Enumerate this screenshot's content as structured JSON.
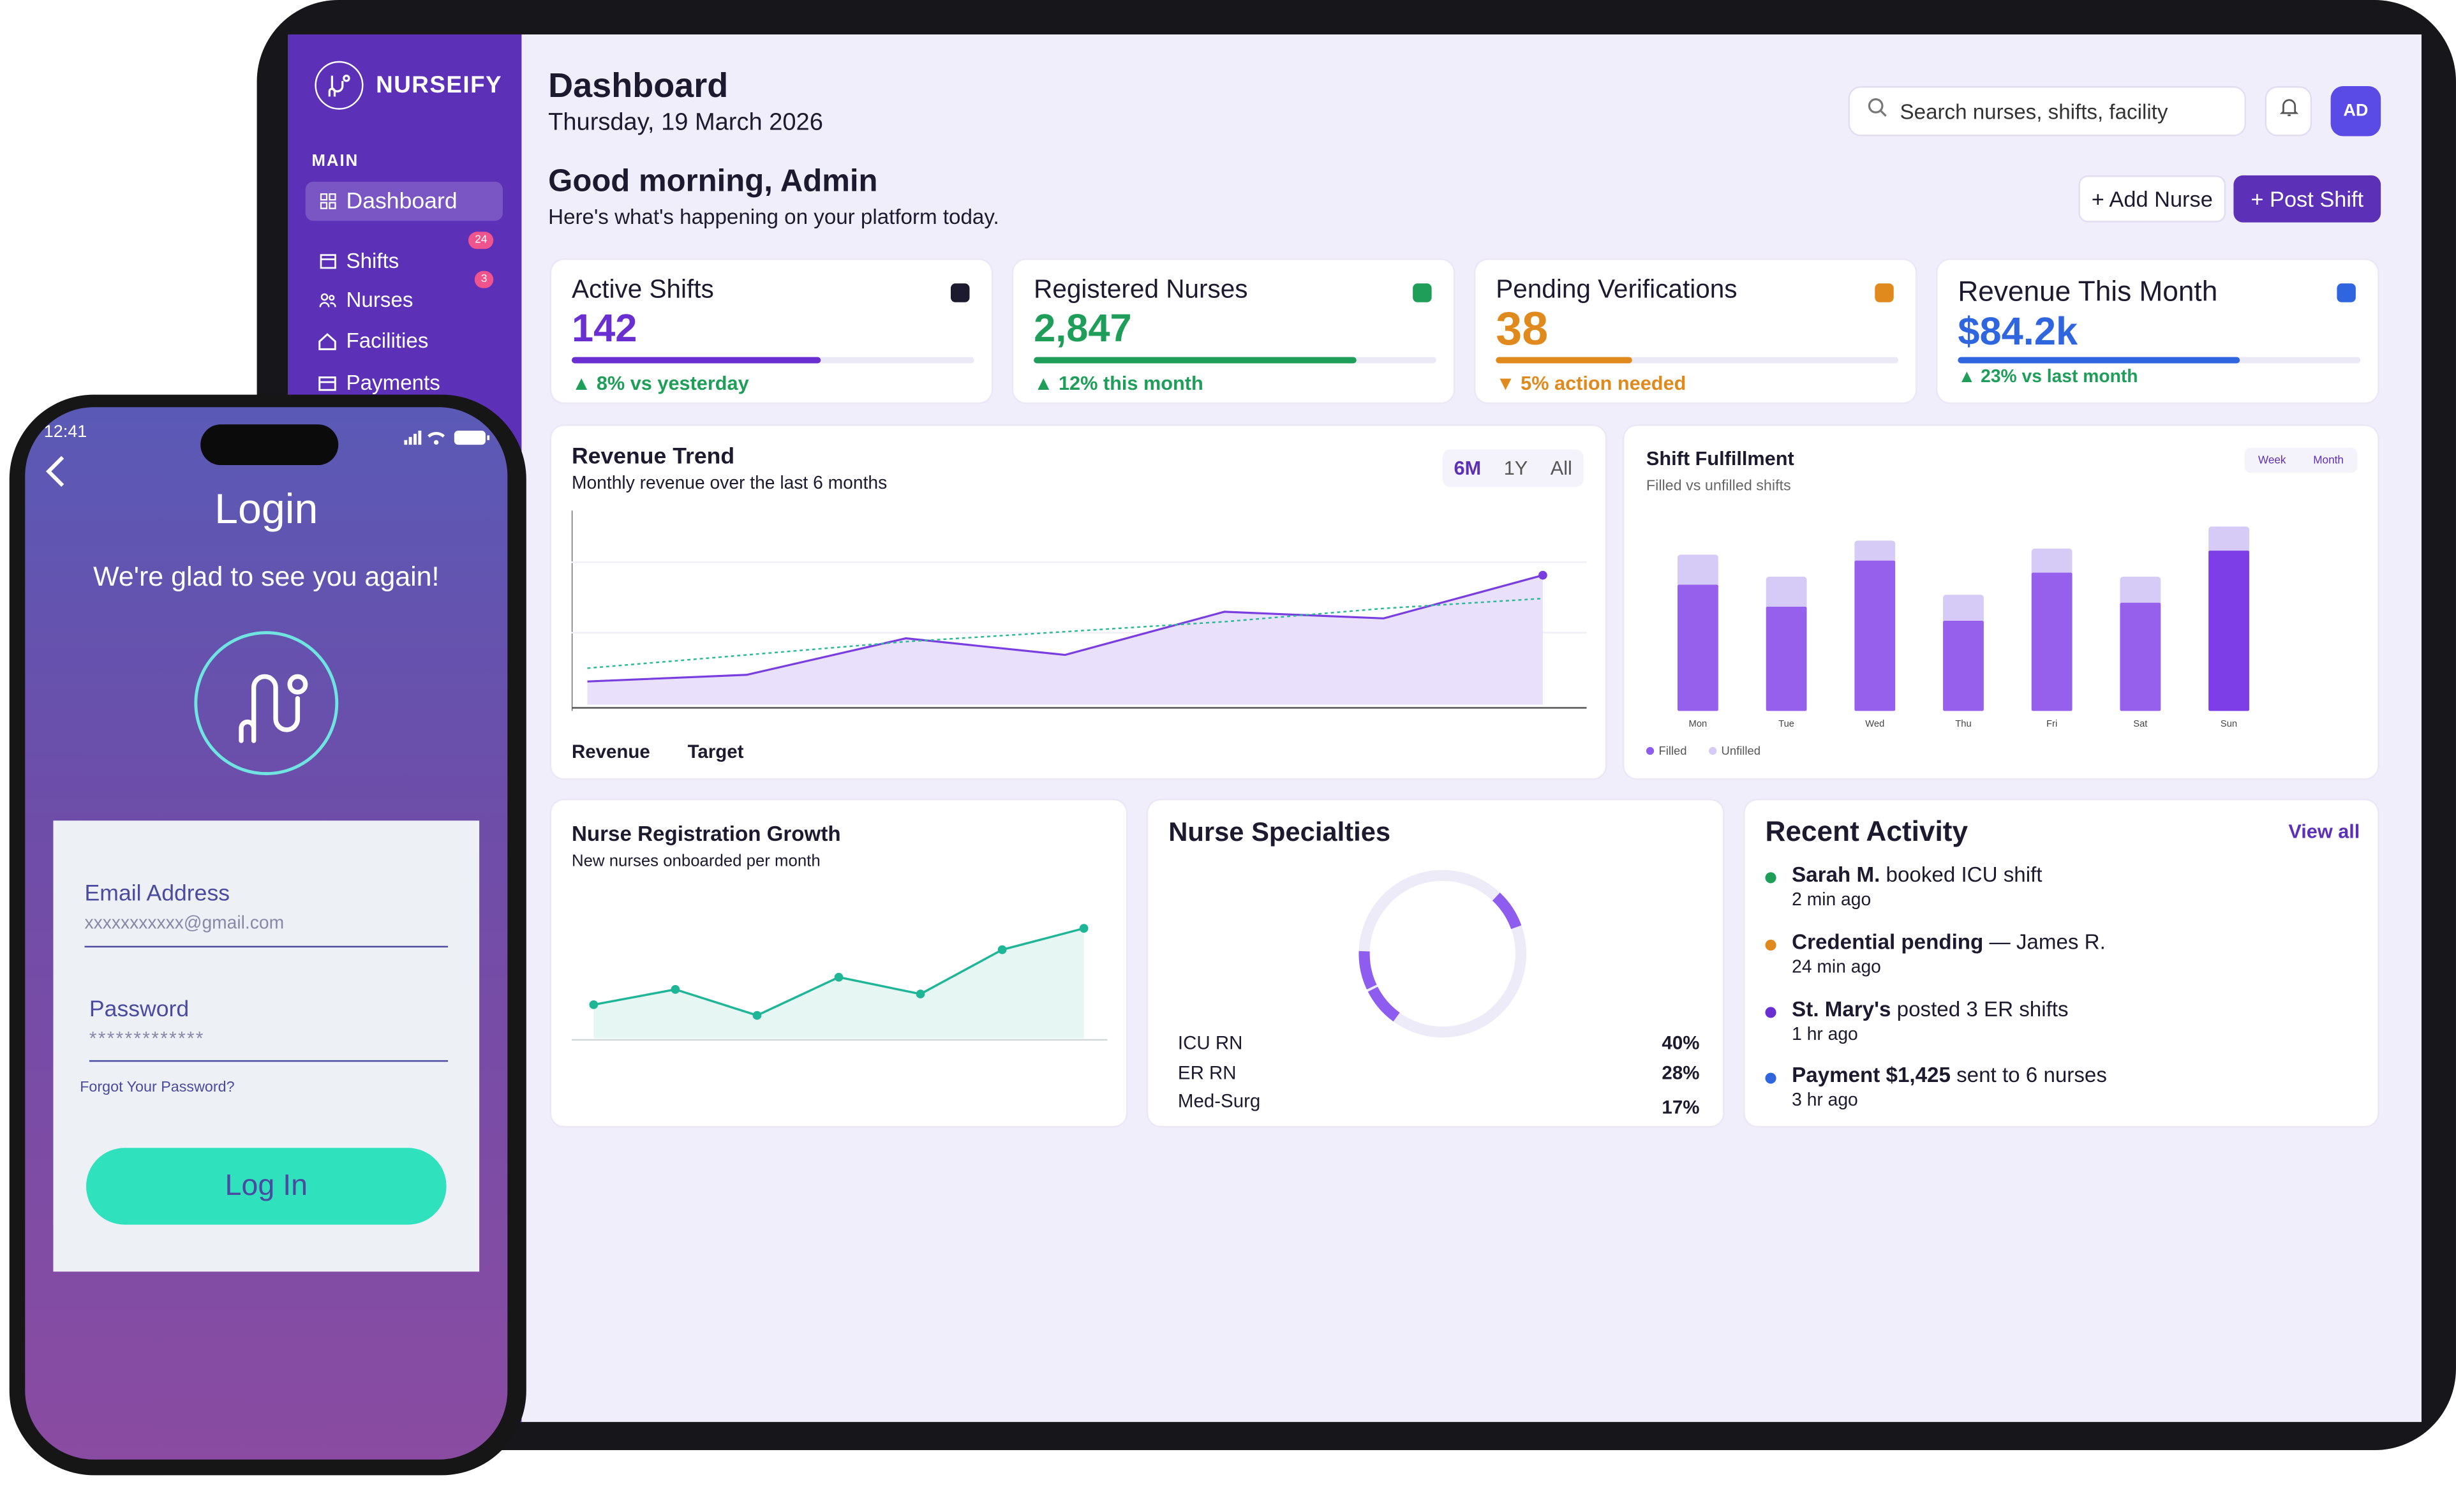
{
  "brand": {
    "name": "NURSEIFY"
  },
  "sidebar": {
    "section": "MAIN",
    "items": [
      {
        "label": "Dashboard",
        "icon": "grid-icon"
      },
      {
        "label": "Shifts",
        "icon": "calendar-icon",
        "badge": "24"
      },
      {
        "label": "Nurses",
        "icon": "users-icon",
        "badge": "3"
      },
      {
        "label": "Facilities",
        "icon": "home-icon"
      },
      {
        "label": "Payments",
        "icon": "card-icon"
      }
    ]
  },
  "header": {
    "title": "Dashboard",
    "date": "Thursday, 19 March 2026",
    "search_placeholder": "Search nurses, shifts, facility",
    "avatar": "AD"
  },
  "greeting": {
    "title": "Good morning, Admin",
    "subtitle": "Here's what's happening on your platform today."
  },
  "actions": {
    "add_nurse": "+ Add Nurse",
    "post_shift": "+ Post Shift"
  },
  "stats": [
    {
      "label": "Active Shifts",
      "value": "142",
      "trend": "▲ 8% vs yesterday",
      "progress": 0.62,
      "color": "#6a2fd0",
      "square": "#1b1a2e",
      "trend_color": "#1e9e58"
    },
    {
      "label": "Registered Nurses",
      "value": "2,847",
      "trend": "▲ 12% this month",
      "progress": 0.8,
      "color": "#1e9e58",
      "square": "#1e9e58",
      "trend_color": "#1e9e58"
    },
    {
      "label": "Pending Verifications",
      "value": "38",
      "trend": "▼ 5% action needed",
      "progress": 0.34,
      "color": "#e08a1e",
      "square": "#e08a1e",
      "trend_color": "#e08a1e"
    },
    {
      "label": "Revenue This Month",
      "value": "$84.2k",
      "trend": "▲ 23% vs last month",
      "progress": 0.7,
      "color": "#2f66e0",
      "square": "#2f66e0",
      "trend_color": "#1e9e58"
    }
  ],
  "revenue_trend": {
    "title": "Revenue Trend",
    "subtitle": "Monthly revenue over the last 6 months",
    "tabs": [
      "6M",
      "1Y",
      "All"
    ],
    "legend": [
      "Revenue",
      "Target"
    ]
  },
  "shift_fulfillment": {
    "title": "Shift Fulfillment",
    "subtitle": "Filled vs unfilled shifts",
    "tabs": [
      "Week",
      "Month"
    ],
    "legend": [
      "Filled",
      "Unfilled"
    ]
  },
  "registration": {
    "title": "Nurse Registration Growth",
    "subtitle": "New nurses onboarded per month"
  },
  "specialties": {
    "title": "Nurse Specialties",
    "rows": [
      {
        "name": "ICU RN",
        "pct": "40%"
      },
      {
        "name": "ER RN",
        "pct": "28%"
      },
      {
        "name": "Med-Surg",
        "pct": "17%"
      }
    ]
  },
  "activity": {
    "title": "Recent Activity",
    "view_all": "View all",
    "items": [
      {
        "bold": "Sarah M.",
        "rest": " booked ICU shift",
        "time": "2 min ago",
        "color": "#1e9e58"
      },
      {
        "bold": "Credential pending",
        "rest": " — James R.",
        "time": "24 min ago",
        "color": "#e08a1e"
      },
      {
        "bold": "St. Mary's",
        "rest": " posted 3 ER shifts",
        "time": "1 hr ago",
        "color": "#6a2fd0"
      },
      {
        "bold": "Payment $1,425",
        "rest": " sent to 6 nurses",
        "time": "3 hr ago",
        "color": "#2f66e0"
      }
    ]
  },
  "phone": {
    "time": "12:41",
    "title": "Login",
    "subtitle": "We're glad to see you again!",
    "email_label": "Email Address",
    "email_value": "xxxxxxxxxxx@gmail.com",
    "password_label": "Password",
    "password_value": "*************",
    "forgot": "Forgot Your Password?",
    "login_button": "Log In"
  },
  "chart_data": [
    {
      "type": "line",
      "title": "Revenue Trend",
      "series": [
        {
          "name": "Revenue",
          "values": [
            14,
            18,
            40,
            30,
            56,
            52,
            78
          ]
        },
        {
          "name": "Target",
          "values": [
            22,
            30,
            38,
            44,
            50,
            58,
            64
          ]
        }
      ]
    },
    {
      "type": "bar",
      "title": "Shift Fulfillment",
      "categories": [
        "Mon",
        "Tue",
        "Wed",
        "Thu",
        "Fri",
        "Sat",
        "Sun"
      ],
      "series": [
        {
          "name": "Filled",
          "values": [
            63,
            52,
            75,
            45,
            69,
            54,
            80
          ]
        },
        {
          "name": "Unfilled",
          "values": [
            15,
            15,
            10,
            13,
            12,
            13,
            12
          ]
        }
      ]
    },
    {
      "type": "line",
      "title": "Nurse Registration Growth",
      "series": [
        {
          "name": "New nurses",
          "values": [
            22,
            32,
            15,
            40,
            29,
            58,
            72
          ]
        }
      ]
    },
    {
      "type": "pie",
      "title": "Nurse Specialties",
      "categories": [
        "ICU RN",
        "ER RN",
        "Med-Surg"
      ],
      "values": [
        40,
        28,
        17
      ]
    }
  ]
}
